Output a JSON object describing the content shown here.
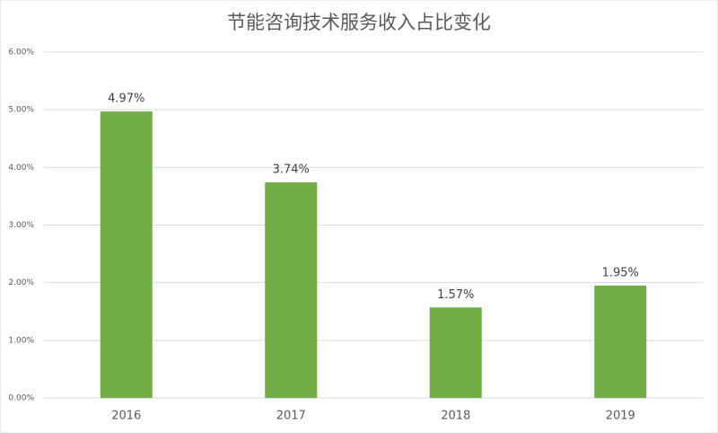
{
  "chart_data": {
    "type": "bar",
    "title": "节能咨询技术服务收入占比变化",
    "categories": [
      "2016",
      "2017",
      "2018",
      "2019"
    ],
    "values": [
      4.97,
      3.74,
      1.57,
      1.95
    ],
    "value_labels": [
      "4.97%",
      "3.74%",
      "1.57%",
      "1.95%"
    ],
    "color": "#70ad47",
    "ylim": [
      0,
      6
    ],
    "yticks": [
      {
        "value": 0,
        "label": "0.00%"
      },
      {
        "value": 1,
        "label": "1.00%"
      },
      {
        "value": 2,
        "label": "2.00%"
      },
      {
        "value": 3,
        "label": "3.00%"
      },
      {
        "value": 4,
        "label": "4.00%"
      },
      {
        "value": 5,
        "label": "5.00%"
      },
      {
        "value": 6,
        "label": "6.00%"
      }
    ],
    "grid": true
  }
}
